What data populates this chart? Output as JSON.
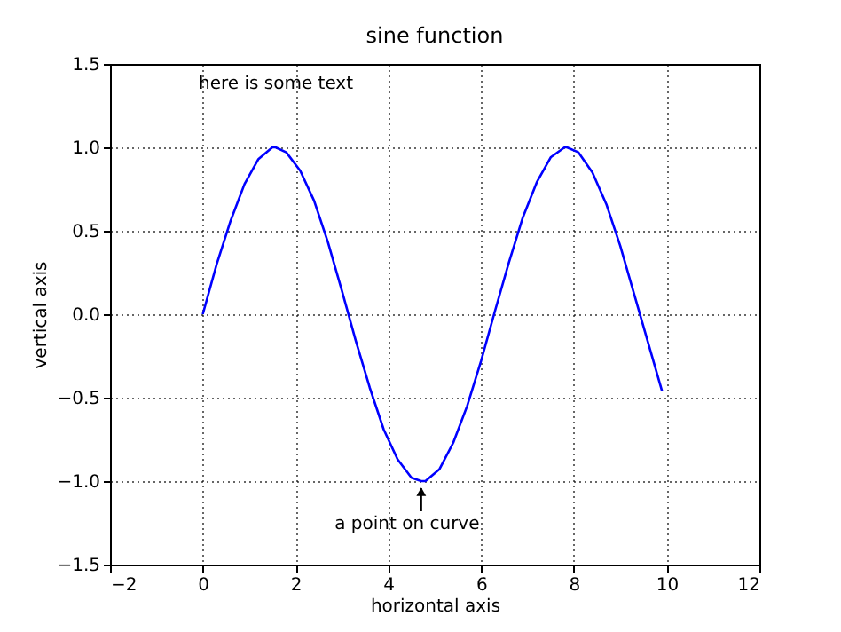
{
  "chart_data": {
    "type": "line",
    "title": "sine function",
    "xlabel": "horizontal axis",
    "ylabel": "vertical axis",
    "annotations": [
      "here is some text",
      {
        "text": "a point on curve",
        "x": 4.71,
        "y": -1
      }
    ],
    "x": [
      0,
      0.3,
      0.6,
      0.9,
      1.2,
      1.5,
      1.57,
      1.8,
      2.1,
      2.4,
      2.7,
      3.0,
      3.3,
      3.6,
      3.9,
      4.2,
      4.5,
      4.71,
      4.8,
      5.1,
      5.4,
      5.7,
      6.0,
      6.3,
      6.6,
      6.9,
      7.2,
      7.5,
      7.8,
      7.85,
      8.1,
      8.4,
      8.7,
      9.0,
      9.3,
      9.6,
      9.9
    ],
    "series": [
      {
        "color": "#0000ff",
        "values": [
          0,
          0.3,
          0.56,
          0.78,
          0.93,
          1.0,
          1.0,
          0.97,
          0.86,
          0.68,
          0.43,
          0.14,
          -0.16,
          -0.44,
          -0.69,
          -0.87,
          -0.98,
          -1.0,
          -1.0,
          -0.93,
          -0.77,
          -0.55,
          -0.28,
          0.02,
          0.31,
          0.58,
          0.79,
          0.94,
          1.0,
          1.0,
          0.97,
          0.85,
          0.66,
          0.41,
          0.12,
          -0.17,
          -0.46
        ]
      }
    ],
    "xlim": [
      -2,
      12
    ],
    "xticks": [
      {
        "value": -2,
        "label": "−2"
      },
      0,
      2,
      4,
      6,
      8,
      10,
      12
    ],
    "ylim": [
      -1.5,
      1.5
    ],
    "yticks": [
      {
        "value": -1.5,
        "label": "−1.5"
      },
      {
        "value": -1,
        "label": "−1.0"
      },
      {
        "value": -0.5,
        "label": "−0.5"
      },
      {
        "value": 0,
        "label": "0.0"
      },
      {
        "value": 0.5,
        "label": "0.5"
      },
      {
        "value": 1,
        "label": "1.0"
      },
      {
        "value": 1.5,
        "label": "1.5"
      }
    ],
    "grid": true,
    "marker": "none",
    "line_style": "solid"
  }
}
